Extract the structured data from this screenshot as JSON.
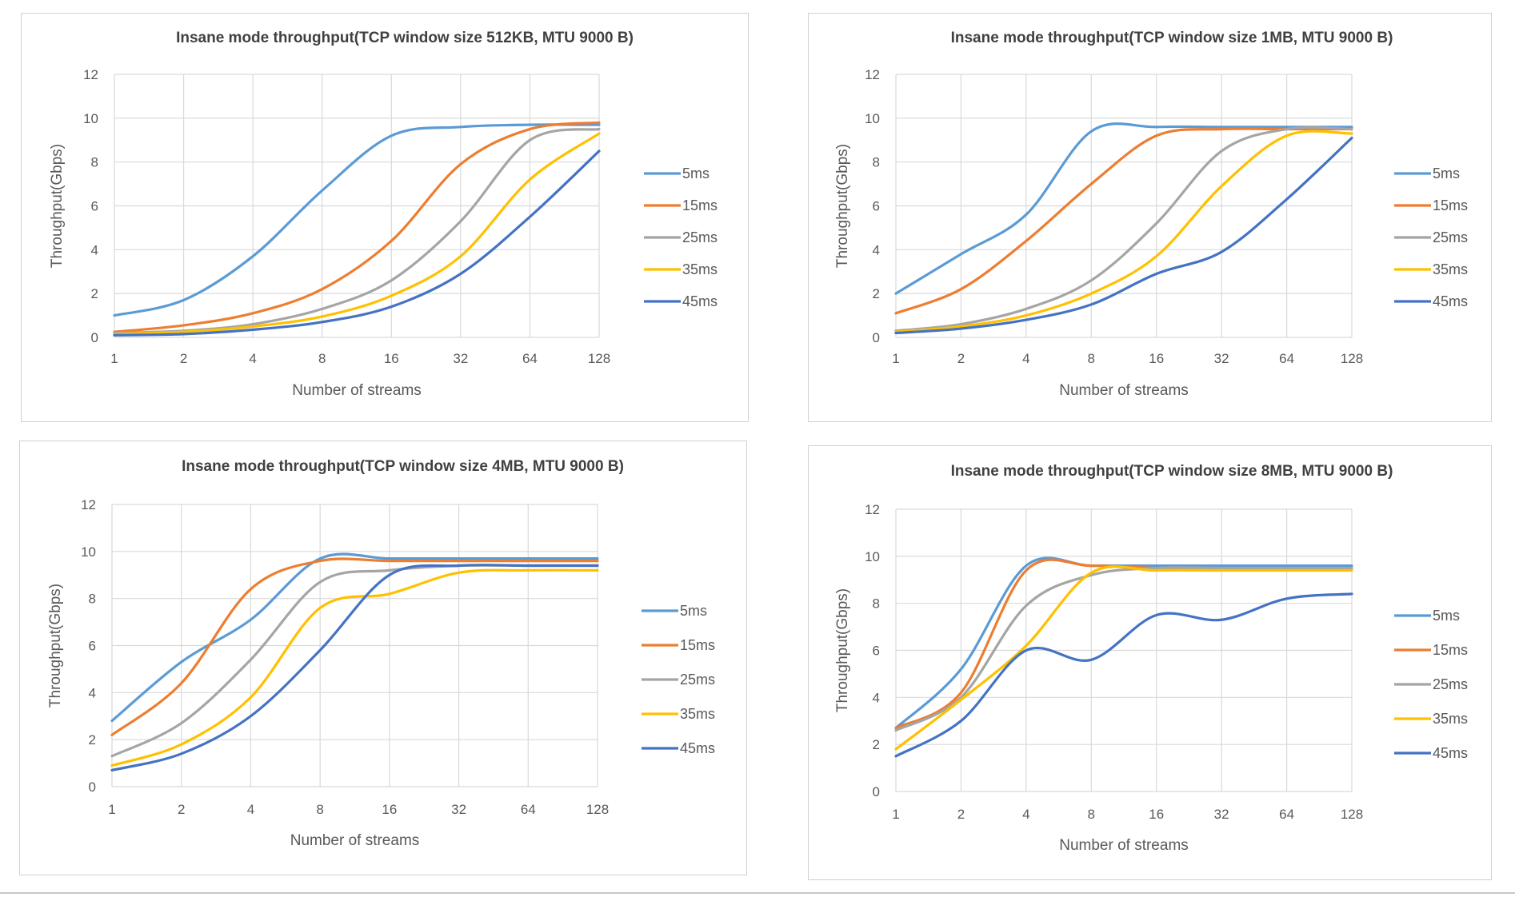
{
  "chart_data": [
    {
      "type": "line",
      "title": "Insane mode throughput(TCP  window size 512KB, MTU  9000 B)",
      "xlabel": "Number  of streams",
      "ylabel": "Throughput(Gbps)",
      "ylim": [
        0,
        12
      ],
      "yticks": [
        "0",
        "2",
        "4",
        "6",
        "8",
        "10",
        "12"
      ],
      "categories": [
        "1",
        "2",
        "4",
        "8",
        "16",
        "32",
        "64",
        "128"
      ],
      "x": [
        1,
        2,
        4,
        8,
        16,
        32,
        64,
        128
      ],
      "grid": true,
      "legend_position": "right",
      "series": [
        {
          "name": "5ms",
          "color": "#5B9BD5",
          "values": [
            1.0,
            1.7,
            3.7,
            6.7,
            9.2,
            9.6,
            9.7,
            9.7
          ]
        },
        {
          "name": "15ms",
          "color": "#ED7D31",
          "values": [
            0.25,
            0.55,
            1.1,
            2.2,
            4.4,
            7.9,
            9.5,
            9.8
          ]
        },
        {
          "name": "25ms",
          "color": "#A5A5A5",
          "values": [
            0.2,
            0.3,
            0.6,
            1.3,
            2.6,
            5.3,
            9.0,
            9.5
          ]
        },
        {
          "name": "35ms",
          "color": "#FFC000",
          "values": [
            0.15,
            0.25,
            0.5,
            0.95,
            1.9,
            3.7,
            7.2,
            9.3
          ]
        },
        {
          "name": "45ms",
          "color": "#4472C4",
          "values": [
            0.1,
            0.15,
            0.35,
            0.7,
            1.4,
            2.9,
            5.5,
            8.5
          ]
        }
      ]
    },
    {
      "type": "line",
      "title": "Insane mode throughput(TCP  window size 1MB, MTU  9000 B)",
      "xlabel": "Number  of streams",
      "ylabel": "Throughput(Gbps)",
      "ylim": [
        0,
        12
      ],
      "yticks": [
        "0",
        "2",
        "4",
        "6",
        "8",
        "10",
        "12"
      ],
      "categories": [
        "1",
        "2",
        "4",
        "8",
        "16",
        "32",
        "64",
        "128"
      ],
      "x": [
        1,
        2,
        4,
        8,
        16,
        32,
        64,
        128
      ],
      "grid": true,
      "legend_position": "right",
      "series": [
        {
          "name": "5ms",
          "color": "#5B9BD5",
          "values": [
            2.0,
            3.8,
            5.6,
            9.4,
            9.6,
            9.6,
            9.6,
            9.6
          ]
        },
        {
          "name": "15ms",
          "color": "#ED7D31",
          "values": [
            1.1,
            2.2,
            4.4,
            7.0,
            9.2,
            9.5,
            9.5,
            9.5
          ]
        },
        {
          "name": "25ms",
          "color": "#A5A5A5",
          "values": [
            0.3,
            0.6,
            1.3,
            2.6,
            5.2,
            8.5,
            9.5,
            9.5
          ]
        },
        {
          "name": "35ms",
          "color": "#FFC000",
          "values": [
            0.25,
            0.5,
            1.0,
            2.0,
            3.7,
            6.9,
            9.2,
            9.3
          ]
        },
        {
          "name": "45ms",
          "color": "#4472C4",
          "values": [
            0.2,
            0.4,
            0.8,
            1.5,
            2.9,
            3.9,
            6.3,
            9.1
          ]
        }
      ]
    },
    {
      "type": "line",
      "title": "Insane mode throughput(TCP  window size 4MB, MTU  9000 B)",
      "xlabel": "Number  of streams",
      "ylabel": "Throughput(Gbps)",
      "ylim": [
        0,
        12
      ],
      "yticks": [
        "0",
        "2",
        "4",
        "6",
        "8",
        "10",
        "12"
      ],
      "categories": [
        "1",
        "2",
        "4",
        "8",
        "16",
        "32",
        "64",
        "128"
      ],
      "x": [
        1,
        2,
        4,
        8,
        16,
        32,
        64,
        128
      ],
      "grid": true,
      "legend_position": "right",
      "series": [
        {
          "name": "5ms",
          "color": "#5B9BD5",
          "values": [
            2.8,
            5.3,
            7.1,
            9.7,
            9.7,
            9.7,
            9.7,
            9.7
          ]
        },
        {
          "name": "15ms",
          "color": "#ED7D31",
          "values": [
            2.2,
            4.4,
            8.4,
            9.6,
            9.6,
            9.6,
            9.6,
            9.6
          ]
        },
        {
          "name": "25ms",
          "color": "#A5A5A5",
          "values": [
            1.3,
            2.7,
            5.4,
            8.7,
            9.2,
            9.4,
            9.4,
            9.4
          ]
        },
        {
          "name": "35ms",
          "color": "#FFC000",
          "values": [
            0.9,
            1.8,
            3.8,
            7.6,
            8.2,
            9.1,
            9.2,
            9.2
          ]
        },
        {
          "name": "45ms",
          "color": "#4472C4",
          "values": [
            0.7,
            1.4,
            3.0,
            5.8,
            9.0,
            9.4,
            9.4,
            9.4
          ]
        }
      ]
    },
    {
      "type": "line",
      "title": "Insane mode throughput(TCP  window size 8MB, MTU  9000 B)",
      "xlabel": "Number  of streams",
      "ylabel": "Throughput(Gbps)",
      "ylim": [
        0,
        12
      ],
      "yticks": [
        "0",
        "2",
        "4",
        "6",
        "8",
        "10",
        "12"
      ],
      "categories": [
        "1",
        "2",
        "4",
        "8",
        "16",
        "32",
        "64",
        "128"
      ],
      "x": [
        1,
        2,
        4,
        8,
        16,
        32,
        64,
        128
      ],
      "grid": true,
      "legend_position": "right",
      "series": [
        {
          "name": "5ms",
          "color": "#5B9BD5",
          "values": [
            2.7,
            5.2,
            9.6,
            9.6,
            9.6,
            9.6,
            9.6,
            9.6
          ]
        },
        {
          "name": "15ms",
          "color": "#ED7D31",
          "values": [
            2.7,
            4.2,
            9.4,
            9.6,
            9.5,
            9.5,
            9.5,
            9.5
          ]
        },
        {
          "name": "25ms",
          "color": "#A5A5A5",
          "values": [
            2.6,
            4.0,
            7.9,
            9.2,
            9.5,
            9.5,
            9.5,
            9.5
          ]
        },
        {
          "name": "35ms",
          "color": "#FFC000",
          "values": [
            1.8,
            3.9,
            6.2,
            9.3,
            9.4,
            9.4,
            9.4,
            9.4
          ]
        },
        {
          "name": "45ms",
          "color": "#4472C4",
          "values": [
            1.5,
            3.0,
            6.0,
            5.6,
            7.5,
            7.3,
            8.2,
            8.4
          ]
        }
      ]
    }
  ]
}
